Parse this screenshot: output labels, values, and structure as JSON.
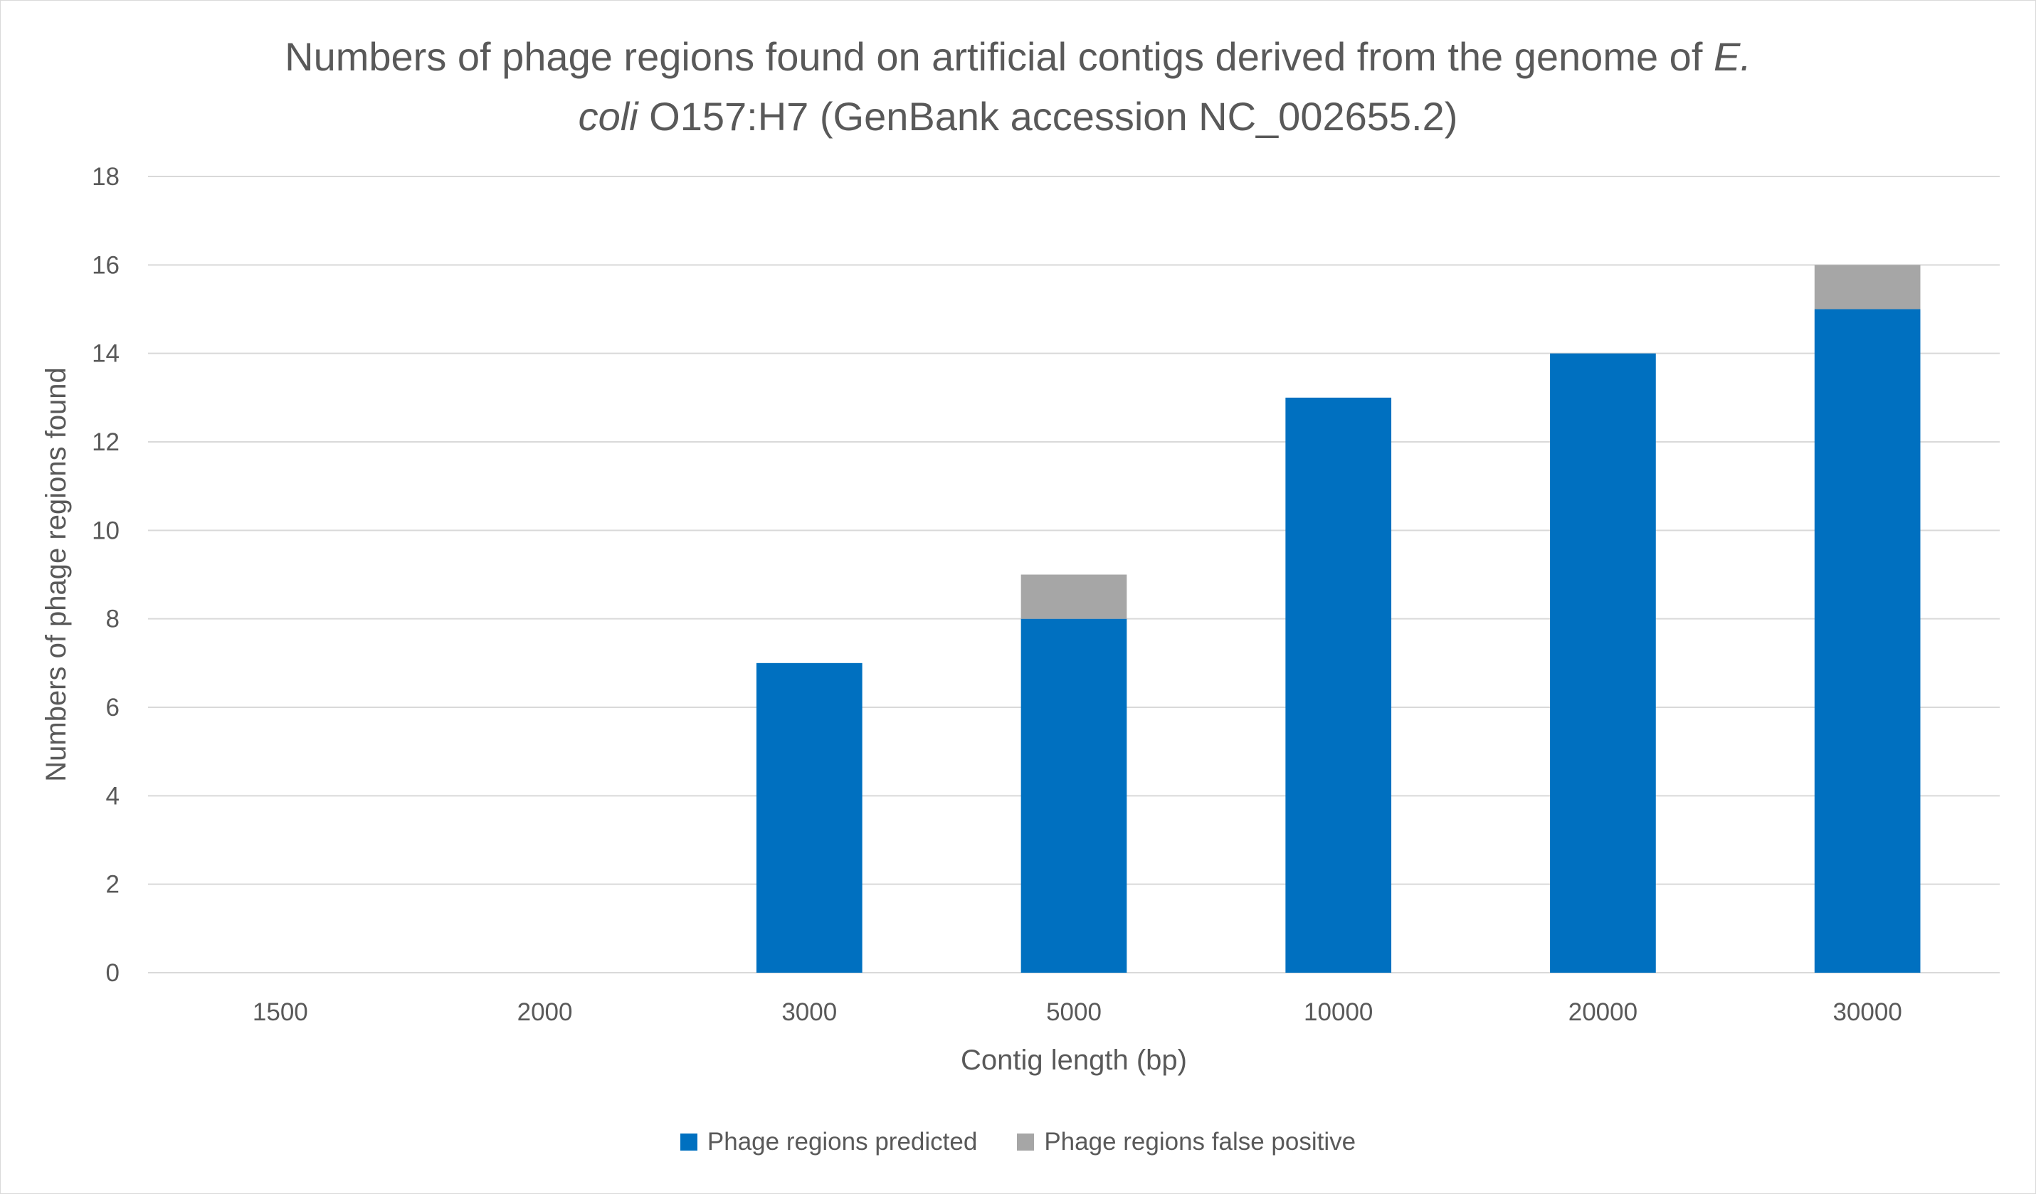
{
  "chart_data": {
    "type": "bar",
    "stacked": true,
    "title_parts": [
      {
        "text": "Numbers of phage regions found on artificial contigs derived from the genome of ",
        "italic": false
      },
      {
        "text": "E.",
        "italic": true
      },
      {
        "text": "\n",
        "italic": false
      },
      {
        "text": "coli",
        "italic": true
      },
      {
        "text": " O157:H7 (GenBank accession NC_002655.2)",
        "italic": false
      }
    ],
    "xlabel": "Contig length (bp)",
    "ylabel": "Numbers of phage regions found",
    "categories": [
      "1500",
      "2000",
      "3000",
      "5000",
      "10000",
      "20000",
      "30000"
    ],
    "yticks": [
      "0",
      "2",
      "4",
      "6",
      "8",
      "10",
      "12",
      "14",
      "16",
      "18"
    ],
    "ylim": [
      0,
      18
    ],
    "grid": true,
    "legend_position": "bottom",
    "series": [
      {
        "name": "Phage regions predicted",
        "color": "#0070c0",
        "values": [
          0,
          0,
          7,
          8,
          13,
          14,
          15
        ]
      },
      {
        "name": "Phage regions false positive",
        "color": "#a6a6a6",
        "values": [
          0,
          0,
          0,
          1,
          0,
          0,
          1
        ]
      }
    ]
  }
}
